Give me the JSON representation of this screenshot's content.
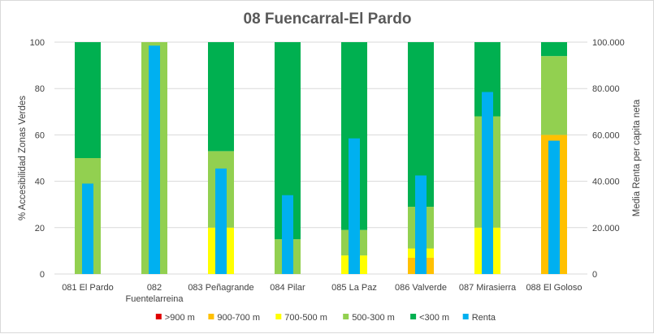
{
  "chart_data": {
    "type": "bar",
    "title": "08 Fuencarral-El Pardo",
    "categories": [
      [
        "081 El Pardo"
      ],
      [
        "082",
        "Fuentelarreina"
      ],
      [
        "083 Peñagrande"
      ],
      [
        "084 Pilar"
      ],
      [
        "085 La Paz"
      ],
      [
        "086 Valverde"
      ],
      [
        "087 Mirasierra"
      ],
      [
        "088 El Goloso"
      ]
    ],
    "ylabel_left": "% Accesibilidad Zonas Verdes",
    "ylabel_right": "Media Renta per capita neta",
    "ylim_left": [
      0,
      100
    ],
    "ylim_right": [
      0,
      100000
    ],
    "yticks_left": [
      "0",
      "20",
      "40",
      "60",
      "80",
      "100"
    ],
    "yticks_right": [
      "0",
      "20.000",
      "40.000",
      "60.000",
      "80.000",
      "100.000"
    ],
    "stacked_series": [
      {
        "name": ">900 m",
        "color": "#e00000",
        "values": [
          0,
          0,
          0,
          0,
          0,
          0,
          0,
          0
        ]
      },
      {
        "name": "900-700 m",
        "color": "#ffc000",
        "values": [
          0,
          0,
          0,
          0,
          0,
          7,
          0,
          60
        ]
      },
      {
        "name": "700-500 m",
        "color": "#ffff00",
        "values": [
          0,
          0,
          20,
          0,
          8,
          4,
          20,
          0
        ]
      },
      {
        "name": "500-300 m",
        "color": "#92d050",
        "values": [
          50,
          100,
          33,
          15,
          11,
          18,
          48,
          34
        ]
      },
      {
        "name": "<300 m",
        "color": "#00b050",
        "values": [
          50,
          0,
          47,
          85,
          81,
          71,
          32,
          6
        ]
      }
    ],
    "overlay_series": {
      "name": "Renta",
      "color": "#00b0f0",
      "axis": "right",
      "values": [
        39000,
        98500,
        45500,
        34000,
        58500,
        42500,
        78500,
        57500
      ]
    },
    "legend_position": "bottom",
    "grid": true
  }
}
